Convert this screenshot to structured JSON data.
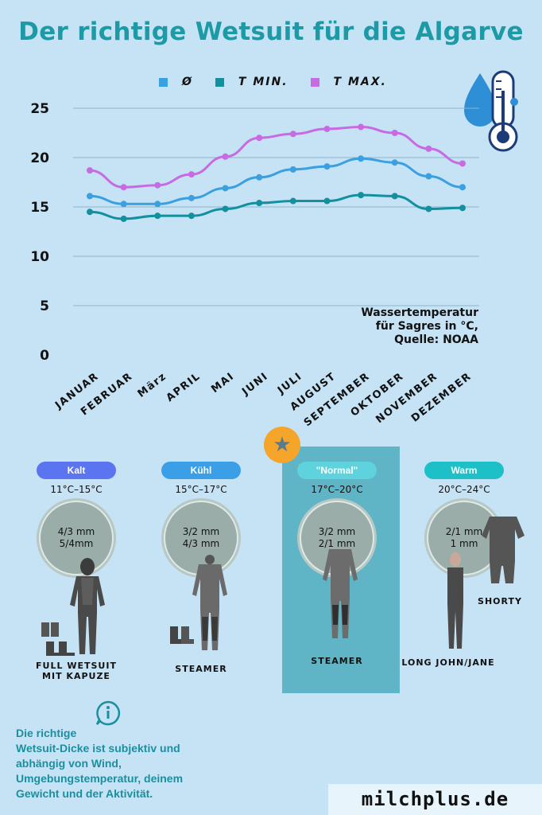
{
  "title": "Der richtige Wetsuit für die Algarve",
  "chart_data": {
    "type": "line",
    "categories": [
      "JANUAR",
      "FEBRUAR",
      "März",
      "APRIL",
      "MAI",
      "JUNI",
      "JULI",
      "AUGUST",
      "SEPTEMBER",
      "OKTOBER",
      "NOVEMBER",
      "DEZEMBER"
    ],
    "series": [
      {
        "name": "Ø",
        "color": "#3aa0e0",
        "values": [
          16.1,
          15.3,
          15.3,
          15.9,
          16.9,
          18.0,
          18.8,
          19.1,
          19.9,
          19.5,
          18.1,
          17.0
        ]
      },
      {
        "name": "T MIN.",
        "color": "#13909e",
        "values": [
          14.5,
          13.8,
          14.1,
          14.1,
          14.8,
          15.4,
          15.6,
          15.6,
          16.2,
          16.1,
          14.8,
          14.9
        ]
      },
      {
        "name": "T MAX.",
        "color": "#c86ae4",
        "values": [
          18.7,
          17.0,
          17.2,
          18.3,
          20.1,
          22.0,
          22.4,
          22.9,
          23.1,
          22.5,
          20.9,
          19.4
        ]
      }
    ],
    "yticks": [
      0,
      5,
      10,
      15,
      20,
      25
    ],
    "ylim": [
      0,
      25
    ],
    "grid": true,
    "legend_position": "top",
    "annotation": [
      "Wassertemperatur",
      "für Sagres in °C,",
      "Quelle: NOAA"
    ]
  },
  "thermometer_icon": "thermometer-drop-icon",
  "categories_wetsuit": [
    {
      "name": "Kalt",
      "color": "#5b74f0",
      "range": "11°C–15°C",
      "thickness": [
        "4/3 mm",
        "5/4mm"
      ],
      "label": [
        "FULL WETSUIT",
        "MIT KAPUZE"
      ]
    },
    {
      "name": "Kühl",
      "color": "#3a9fe6",
      "range": "15°C–17°C",
      "thickness": [
        "3/2 mm",
        "4/3 mm"
      ],
      "label": [
        "STEAMER"
      ]
    },
    {
      "name": "\"Normal\"",
      "color": "#5ed3dd",
      "range": "17°C–20°C",
      "thickness": [
        "3/2 mm",
        "2/1 mm"
      ],
      "label": [
        "STEAMER"
      ]
    },
    {
      "name": "Warm",
      "color": "#1ec0c8",
      "range": "20°C–24°C",
      "thickness": [
        "2/1 mm",
        "1 mm"
      ],
      "label": [
        "LONG JOHN/JANE",
        "SHORTY"
      ]
    }
  ],
  "info": {
    "icon": "info-icon",
    "text": [
      "Die richtige",
      "Wetsuit-Dicke ist subjektiv und",
      "abhängig von Wind,",
      "Umgebungstemperatur, deinem",
      "Gewicht und der Aktivität."
    ]
  },
  "brand": "milchplus.de",
  "star_icon": "star-icon"
}
